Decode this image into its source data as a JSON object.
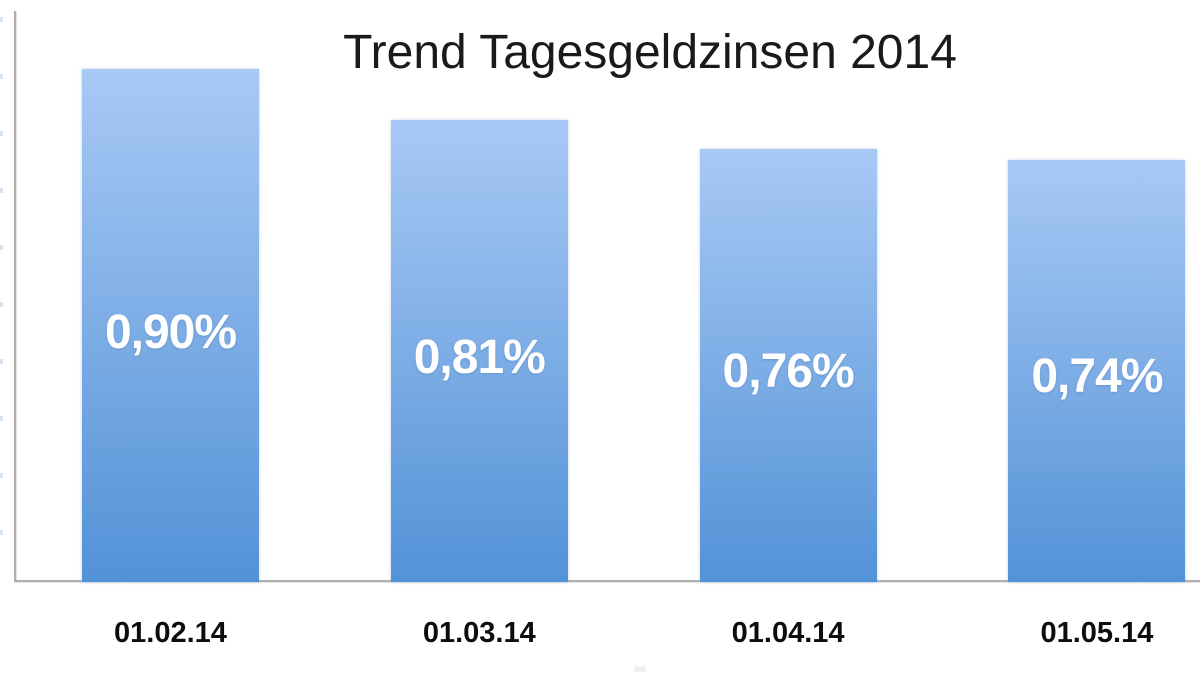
{
  "chart_data": {
    "type": "bar",
    "title": "Trend Tagesgeldzinsen 2014",
    "categories": [
      "01.02.14",
      "01.03.14",
      "01.04.14",
      "01.05.14"
    ],
    "values": [
      0.9,
      0.81,
      0.76,
      0.74
    ],
    "data_labels": [
      "0,90%",
      "0,81%",
      "0,76%",
      "0,74%"
    ],
    "unit": "%",
    "xlabel": "",
    "ylabel": "",
    "ylim": [
      0,
      1.0
    ],
    "y_tick_step": 0.1,
    "grid": false,
    "legend_position": "none",
    "y_axis_labels_visible": false,
    "colors": {
      "bar_gradient_top": "#a8c9f5",
      "bar_gradient_bottom": "#5392d7",
      "axis": "#b0b0b0",
      "title_text": "#1a1a1a",
      "category_text": "#0d0d0d",
      "value_text": "#ffffff",
      "background": "#ffffff"
    }
  }
}
